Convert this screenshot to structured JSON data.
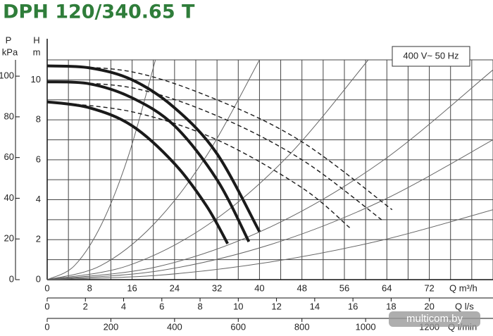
{
  "chart_data": {
    "type": "line",
    "title": "DPH 120/340.65 T",
    "annotation": "400 V~ 50 Hz",
    "watermark": "multicom.by",
    "xlabel": "Q m³/h",
    "x2label": "Q l/s",
    "x3label": "Q l/min",
    "ylabel": "H",
    "yunit": "m",
    "y2label": "P",
    "y2unit": "kPa",
    "xlim": [
      0,
      84
    ],
    "xticks": [
      0,
      8,
      16,
      24,
      32,
      40,
      48,
      56,
      64,
      72
    ],
    "xminor": [
      4,
      12,
      20,
      28,
      36,
      44,
      52,
      60,
      68,
      76,
      80,
      84
    ],
    "x2lim": [
      0,
      23.33
    ],
    "x2ticks": [
      0,
      2,
      4,
      6,
      8,
      10,
      12,
      14,
      16,
      18,
      20
    ],
    "x3lim": [
      0,
      1400
    ],
    "x3ticks": [
      0,
      200,
      400,
      600,
      800,
      1000,
      1200
    ],
    "ylim": [
      0,
      11
    ],
    "yticks": [
      0,
      2,
      4,
      6,
      8,
      10
    ],
    "yminor": [
      1,
      3,
      5,
      7,
      9,
      11
    ],
    "y2lim": [
      0,
      108
    ],
    "y2ticks": [
      0,
      20,
      40,
      60,
      80,
      100
    ],
    "grid": true,
    "series": [
      {
        "color": "#1a1a1a",
        "dash": false,
        "x": [
          0,
          8,
          16,
          24,
          32,
          40
        ],
        "values": [
          10.7,
          10.6,
          10,
          8.6,
          6.3,
          2.4
        ]
      },
      {
        "color": "#1a1a1a",
        "dash": false,
        "x": [
          0,
          8,
          16,
          24,
          32,
          38
        ],
        "values": [
          9.9,
          9.8,
          9.1,
          7.7,
          5,
          1.9
        ]
      },
      {
        "color": "#1a1a1a",
        "dash": false,
        "x": [
          0,
          8,
          16,
          24,
          30,
          34
        ],
        "values": [
          8.9,
          8.6,
          7.7,
          5.8,
          3.7,
          1.8
        ]
      },
      {
        "color": "#1a1a1a",
        "dash": true,
        "x": [
          0,
          16,
          32,
          48,
          65
        ],
        "values": [
          10.7,
          10.4,
          9,
          6.9,
          3.5
        ]
      },
      {
        "color": "#1a1a1a",
        "dash": true,
        "x": [
          0,
          16,
          32,
          48,
          63
        ],
        "values": [
          9.9,
          9.6,
          8.2,
          6,
          3
        ]
      },
      {
        "color": "#1a1a1a",
        "dash": true,
        "x": [
          0,
          16,
          32,
          48,
          57
        ],
        "values": [
          8.9,
          8.4,
          7,
          4.6,
          2.6
        ]
      }
    ],
    "reference_curves": [
      {
        "color": "#666",
        "x": [
          0,
          5.1,
          10.2,
          15.3,
          20.4
        ],
        "values": [
          0,
          0.69,
          2.75,
          6.19,
          11
        ]
      },
      {
        "color": "#666",
        "x": [
          0,
          10,
          20,
          30,
          40
        ],
        "values": [
          0,
          0.69,
          2.75,
          6.19,
          11
        ]
      },
      {
        "color": "#666",
        "x": [
          0,
          15.1,
          30.3,
          45.4,
          60.5
        ],
        "values": [
          0,
          0.69,
          2.75,
          6.19,
          11
        ]
      },
      {
        "color": "#666",
        "x": [
          0,
          21,
          42,
          63,
          84
        ],
        "values": [
          0,
          0.66,
          2.63,
          5.91,
          10.5
        ]
      },
      {
        "color": "#666",
        "x": [
          0,
          21,
          42,
          63,
          84
        ],
        "values": [
          0,
          0.44,
          1.75,
          3.94,
          7
        ]
      },
      {
        "color": "#666",
        "x": [
          0,
          21,
          42,
          63,
          84
        ],
        "values": [
          0,
          0.22,
          0.88,
          1.97,
          3.5
        ]
      }
    ]
  }
}
